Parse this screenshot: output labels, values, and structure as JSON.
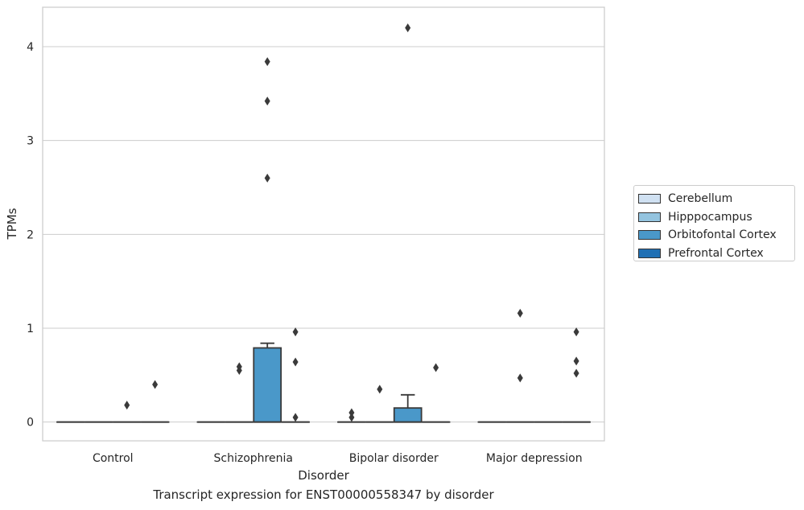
{
  "chart_data": {
    "type": "box",
    "title": "Transcript expression for ENST00000558347 by disorder",
    "xlabel": "Disorder",
    "ylabel": "TPMs",
    "ylim": [
      -0.2,
      4.42
    ],
    "yticks": [
      0,
      1,
      2,
      3,
      4
    ],
    "grid": true,
    "legend_position": "right",
    "categories": [
      "Control",
      "Schizophrenia",
      "Bipolar disorder",
      "Major depression"
    ],
    "series": [
      {
        "name": "Cerebellum",
        "color": "#d0e1f2",
        "boxes": [
          {
            "q1": 0,
            "median": 0,
            "q3": 0,
            "whisker_low": 0,
            "whisker_high": 0,
            "outliers": []
          },
          {
            "q1": 0,
            "median": 0,
            "q3": 0,
            "whisker_low": 0,
            "whisker_high": 0,
            "outliers": []
          },
          {
            "q1": 0,
            "median": 0,
            "q3": 0,
            "whisker_low": 0,
            "whisker_high": 0,
            "outliers": [
              0.05,
              0.1
            ]
          },
          {
            "q1": 0,
            "median": 0,
            "q3": 0,
            "whisker_low": 0,
            "whisker_high": 0,
            "outliers": []
          }
        ]
      },
      {
        "name": "Hipppocampus",
        "color": "#94c4df",
        "boxes": [
          {
            "q1": 0,
            "median": 0,
            "q3": 0,
            "whisker_low": 0,
            "whisker_high": 0,
            "outliers": []
          },
          {
            "q1": 0,
            "median": 0,
            "q3": 0,
            "whisker_low": 0,
            "whisker_high": 0,
            "outliers": [
              0.55,
              0.59
            ]
          },
          {
            "q1": 0,
            "median": 0,
            "q3": 0,
            "whisker_low": 0,
            "whisker_high": 0,
            "outliers": [
              0.35
            ]
          },
          {
            "q1": 0,
            "median": 0,
            "q3": 0,
            "whisker_low": 0,
            "whisker_high": 0,
            "outliers": [
              0.47,
              1.16
            ]
          }
        ]
      },
      {
        "name": "Orbitofontal Cortex",
        "color": "#4a98c9",
        "boxes": [
          {
            "q1": 0,
            "median": 0,
            "q3": 0,
            "whisker_low": 0,
            "whisker_high": 0,
            "outliers": [
              0.18
            ]
          },
          {
            "q1": 0,
            "median": 0,
            "q3": 0.79,
            "whisker_low": 0,
            "whisker_high": 0.84,
            "outliers": [
              2.6,
              3.42,
              3.84
            ]
          },
          {
            "q1": 0,
            "median": 0,
            "q3": 0.15,
            "whisker_low": 0,
            "whisker_high": 0.29,
            "outliers": [
              4.2
            ]
          },
          {
            "q1": 0,
            "median": 0,
            "q3": 0,
            "whisker_low": 0,
            "whisker_high": 0,
            "outliers": []
          }
        ]
      },
      {
        "name": "Prefrontal Cortex",
        "color": "#2070b4",
        "boxes": [
          {
            "q1": 0,
            "median": 0,
            "q3": 0,
            "whisker_low": 0,
            "whisker_high": 0,
            "outliers": [
              0.4
            ]
          },
          {
            "q1": 0,
            "median": 0,
            "q3": 0,
            "whisker_low": 0,
            "whisker_high": 0,
            "outliers": [
              0.05,
              0.64,
              0.96
            ]
          },
          {
            "q1": 0,
            "median": 0,
            "q3": 0,
            "whisker_low": 0,
            "whisker_high": 0,
            "outliers": [
              0.58
            ]
          },
          {
            "q1": 0,
            "median": 0,
            "q3": 0,
            "whisker_low": 0,
            "whisker_high": 0,
            "outliers": [
              0.52,
              0.65,
              0.96
            ]
          }
        ]
      }
    ]
  }
}
